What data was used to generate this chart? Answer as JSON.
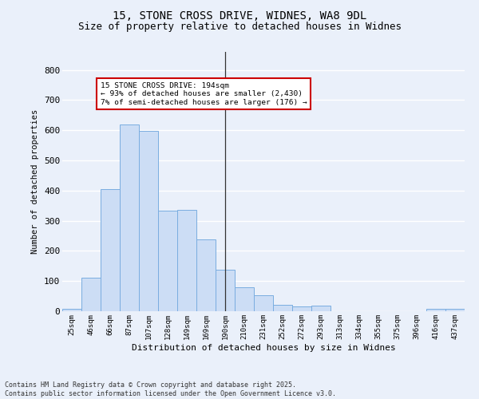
{
  "title_line1": "15, STONE CROSS DRIVE, WIDNES, WA8 9DL",
  "title_line2": "Size of property relative to detached houses in Widnes",
  "xlabel": "Distribution of detached houses by size in Widnes",
  "ylabel": "Number of detached properties",
  "bar_labels": [
    "25sqm",
    "46sqm",
    "66sqm",
    "87sqm",
    "107sqm",
    "128sqm",
    "149sqm",
    "169sqm",
    "190sqm",
    "210sqm",
    "231sqm",
    "252sqm",
    "272sqm",
    "293sqm",
    "313sqm",
    "334sqm",
    "355sqm",
    "375sqm",
    "396sqm",
    "416sqm",
    "437sqm"
  ],
  "bar_values": [
    7,
    110,
    405,
    620,
    597,
    333,
    335,
    237,
    138,
    80,
    53,
    22,
    15,
    18,
    0,
    0,
    0,
    0,
    0,
    8,
    8
  ],
  "bar_color": "#ccddf5",
  "bar_edge_color": "#7aade0",
  "background_color": "#eaf0fa",
  "grid_color": "#ffffff",
  "vline_x": 8,
  "vline_color": "#333333",
  "annotation_text": "15 STONE CROSS DRIVE: 194sqm\n← 93% of detached houses are smaller (2,430)\n7% of semi-detached houses are larger (176) →",
  "annotation_box_color": "#cc0000",
  "annotation_fill": "#ffffff",
  "ylim": [
    0,
    860
  ],
  "yticks": [
    0,
    100,
    200,
    300,
    400,
    500,
    600,
    700,
    800
  ],
  "footnote": "Contains HM Land Registry data © Crown copyright and database right 2025.\nContains public sector information licensed under the Open Government Licence v3.0.",
  "title_fontsize": 10,
  "subtitle_fontsize": 9
}
